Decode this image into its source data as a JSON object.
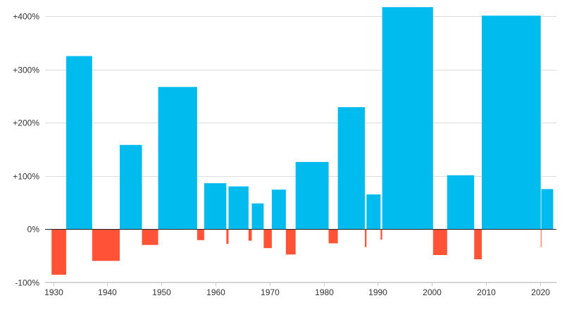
{
  "chart_data": {
    "type": "bar",
    "title": "",
    "xlabel": "",
    "ylabel": "",
    "xlim": [
      1928.5,
      2023
    ],
    "ylim": [
      -100,
      420
    ],
    "grid": true,
    "legend": "none",
    "y_ticks": [
      {
        "value": 400,
        "label": "+400%"
      },
      {
        "value": 300,
        "label": "+300%"
      },
      {
        "value": 200,
        "label": "+200%"
      },
      {
        "value": 100,
        "label": "+100%"
      },
      {
        "value": 0,
        "label": "0%"
      },
      {
        "value": -100,
        "label": "-100%"
      }
    ],
    "x_ticks": [
      {
        "value": 1930,
        "label": "1930"
      },
      {
        "value": 1940,
        "label": "1940"
      },
      {
        "value": 1950,
        "label": "1950"
      },
      {
        "value": 1960,
        "label": "1960"
      },
      {
        "value": 1970,
        "label": "1970"
      },
      {
        "value": 1980,
        "label": "1980"
      },
      {
        "value": 1990,
        "label": "1990"
      },
      {
        "value": 2000,
        "label": "2000"
      },
      {
        "value": 2010,
        "label": "2010"
      },
      {
        "value": 2020,
        "label": "2020"
      }
    ],
    "colors": {
      "gain": "#00bbee",
      "loss": "#ff5236"
    },
    "bars": [
      {
        "start": 1929.7,
        "end": 1932.4,
        "value": -86,
        "kind": "loss"
      },
      {
        "start": 1932.4,
        "end": 1937.2,
        "value": 325,
        "kind": "gain"
      },
      {
        "start": 1937.2,
        "end": 1942.3,
        "value": -60,
        "kind": "loss"
      },
      {
        "start": 1942.3,
        "end": 1946.4,
        "value": 158,
        "kind": "gain"
      },
      {
        "start": 1946.4,
        "end": 1949.4,
        "value": -30,
        "kind": "loss"
      },
      {
        "start": 1949.4,
        "end": 1956.6,
        "value": 267,
        "kind": "gain"
      },
      {
        "start": 1956.6,
        "end": 1957.9,
        "value": -21,
        "kind": "loss"
      },
      {
        "start": 1957.9,
        "end": 1962.0,
        "value": 86,
        "kind": "gain"
      },
      {
        "start": 1962.0,
        "end": 1962.4,
        "value": -28,
        "kind": "loss"
      },
      {
        "start": 1962.4,
        "end": 1966.1,
        "value": 80,
        "kind": "gain"
      },
      {
        "start": 1966.1,
        "end": 1966.7,
        "value": -22,
        "kind": "loss"
      },
      {
        "start": 1966.7,
        "end": 1968.9,
        "value": 48,
        "kind": "gain"
      },
      {
        "start": 1968.9,
        "end": 1970.4,
        "value": -36,
        "kind": "loss"
      },
      {
        "start": 1970.4,
        "end": 1973.0,
        "value": 74,
        "kind": "gain"
      },
      {
        "start": 1973.0,
        "end": 1974.8,
        "value": -48,
        "kind": "loss"
      },
      {
        "start": 1974.8,
        "end": 1980.9,
        "value": 126,
        "kind": "gain"
      },
      {
        "start": 1980.9,
        "end": 1982.6,
        "value": -27,
        "kind": "loss"
      },
      {
        "start": 1982.6,
        "end": 1987.6,
        "value": 229,
        "kind": "gain"
      },
      {
        "start": 1987.6,
        "end": 1987.9,
        "value": -34,
        "kind": "loss"
      },
      {
        "start": 1987.9,
        "end": 1990.5,
        "value": 65,
        "kind": "gain"
      },
      {
        "start": 1990.5,
        "end": 1990.8,
        "value": -20,
        "kind": "loss"
      },
      {
        "start": 1990.8,
        "end": 2000.2,
        "value": 417,
        "kind": "gain"
      },
      {
        "start": 2000.2,
        "end": 2002.8,
        "value": -49,
        "kind": "loss"
      },
      {
        "start": 2002.8,
        "end": 2007.8,
        "value": 101,
        "kind": "gain"
      },
      {
        "start": 2007.8,
        "end": 2009.2,
        "value": -57,
        "kind": "loss"
      },
      {
        "start": 2009.2,
        "end": 2020.1,
        "value": 401,
        "kind": "gain"
      },
      {
        "start": 2020.1,
        "end": 2020.2,
        "value": -34,
        "kind": "loss"
      },
      {
        "start": 2020.2,
        "end": 2022.4,
        "value": 75,
        "kind": "gain"
      }
    ]
  }
}
